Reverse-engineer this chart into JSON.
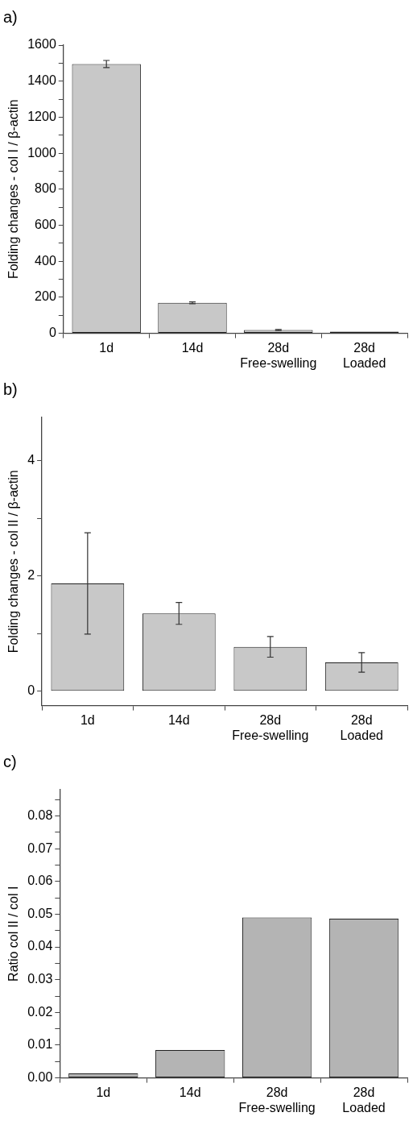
{
  "chart_data": [
    {
      "type": "bar",
      "title": "a)",
      "ylabel": "Folding changes - col I / β-actin",
      "categories": [
        "1d",
        "14d",
        "28d\nFree-swelling",
        "28d\nLoaded"
      ],
      "values": [
        1495,
        169,
        18,
        9
      ],
      "errors": [
        20,
        5,
        3,
        null
      ],
      "colors": [
        "#c8c8c8",
        "#c8c8c8",
        "#c8c8c8",
        "#222222"
      ],
      "ylim": [
        0,
        1600
      ],
      "yticks": [
        0,
        {
          "value": 100,
          "label": null
        },
        200,
        {
          "value": 300,
          "label": null
        },
        400,
        {
          "value": 500,
          "label": null
        },
        600,
        {
          "value": 700,
          "label": null
        },
        800,
        {
          "value": 900,
          "label": null
        },
        1000,
        {
          "value": 1100,
          "label": null
        },
        1200,
        {
          "value": 1300,
          "label": null
        },
        1400,
        {
          "value": 1500,
          "label": null
        },
        1600
      ],
      "grid": false,
      "legend": false
    },
    {
      "type": "bar",
      "title": "b)",
      "ylabel": "Folding changes - col II / β-actin",
      "categories": [
        "1d",
        "14d",
        "28d\nFree-swelling",
        "28d\nLoaded"
      ],
      "values": [
        1.87,
        1.35,
        0.77,
        0.5
      ],
      "errors": [
        0.88,
        0.19,
        0.18,
        0.17
      ],
      "color": "#c8c8c8",
      "ylim": [
        -0.25,
        4.75
      ],
      "yticks": [
        0,
        {
          "value": 1,
          "label": null
        },
        2,
        {
          "value": 3,
          "label": null
        },
        4
      ],
      "grid": false,
      "legend": false
    },
    {
      "type": "bar",
      "title": "c)",
      "ylabel": "Ratio col II / col I",
      "categories": [
        "1d",
        "14d",
        "28d\nFree-swelling",
        "28d\nLoaded"
      ],
      "values": [
        0.0014,
        0.0085,
        0.049,
        0.0486
      ],
      "color": "#b4b4b4",
      "ylim": [
        0,
        0.088
      ],
      "yticks": [
        "0.00",
        {
          "value": 0.005,
          "label": null
        },
        {
          "value": 0.01,
          "label": "0.01"
        },
        {
          "value": 0.015,
          "label": null
        },
        {
          "value": 0.02,
          "label": "0.02"
        },
        {
          "value": 0.025,
          "label": null
        },
        {
          "value": 0.03,
          "label": "0.03"
        },
        {
          "value": 0.035,
          "label": null
        },
        {
          "value": 0.04,
          "label": "0.04"
        },
        {
          "value": 0.045,
          "label": null
        },
        {
          "value": 0.05,
          "label": "0.05"
        },
        {
          "value": 0.055,
          "label": null
        },
        {
          "value": 0.06,
          "label": "0.06"
        },
        {
          "value": 0.065,
          "label": null
        },
        {
          "value": 0.07,
          "label": "0.07"
        },
        {
          "value": 0.075,
          "label": null
        },
        {
          "value": 0.08,
          "label": "0.08"
        },
        {
          "value": 0.085,
          "label": null
        }
      ],
      "grid": false,
      "legend": false
    }
  ]
}
